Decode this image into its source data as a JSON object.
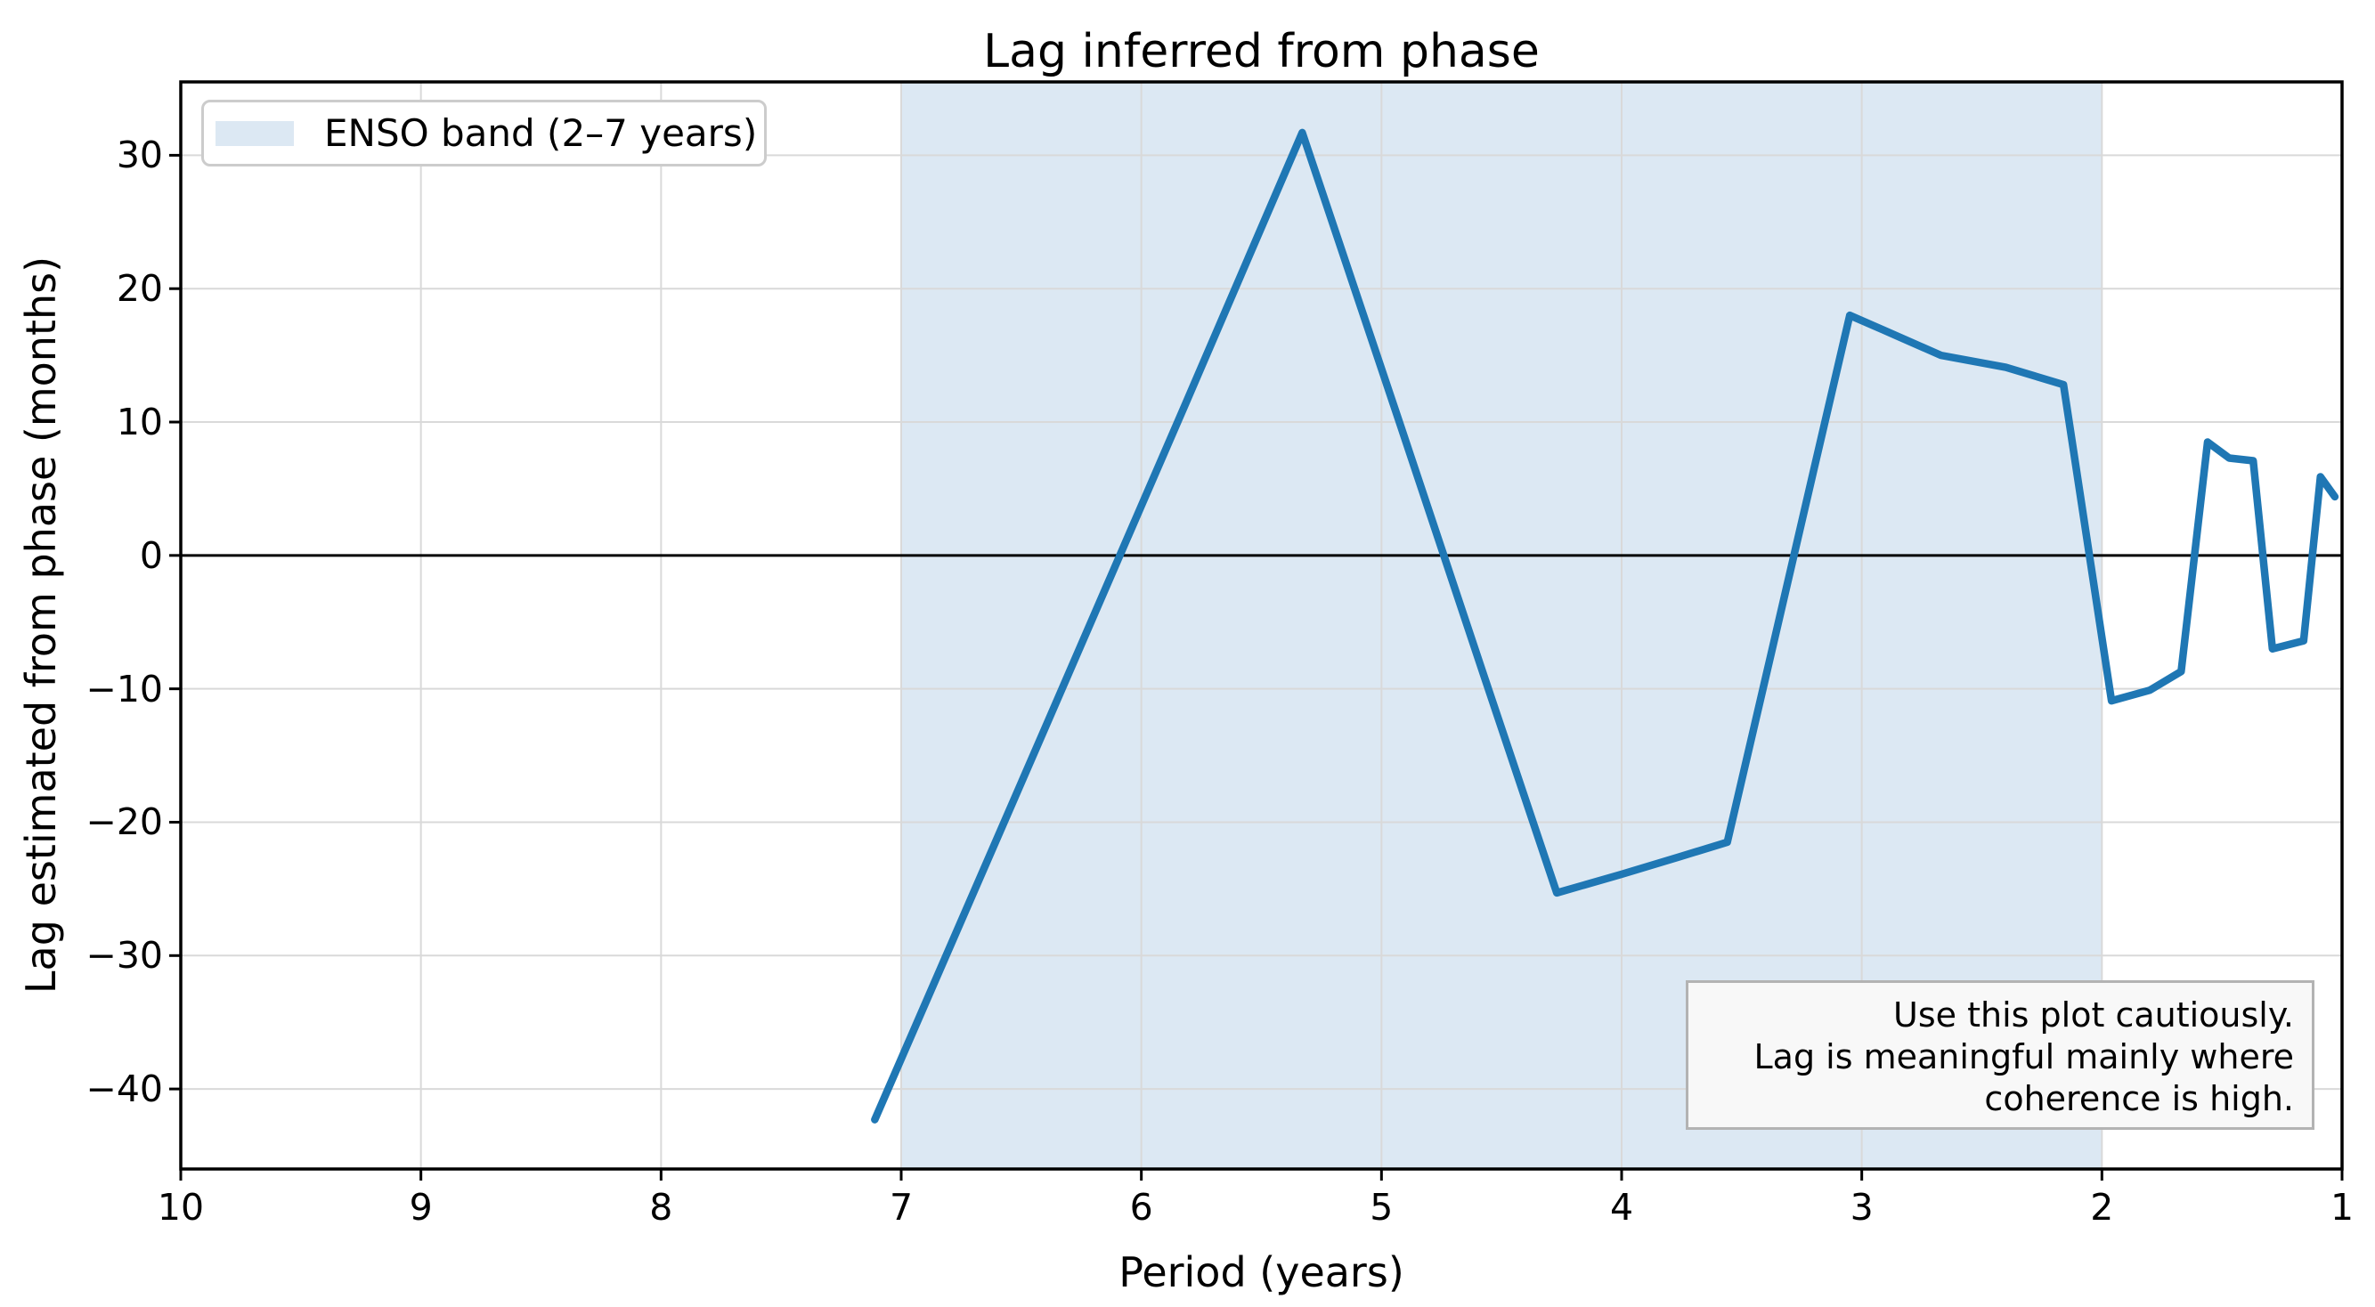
{
  "figure": {
    "title": "Lag inferred from phase",
    "xlabel": "Period (years)",
    "ylabel": "Lag estimated from phase (months)"
  },
  "legend": {
    "items": [
      {
        "label": "ENSO band (2–7 years)",
        "swatch_color": "#dce8f3"
      }
    ]
  },
  "annotation": {
    "lines": [
      "Use this plot cautiously.",
      "Lag is meaningful mainly where",
      "coherence is high."
    ]
  },
  "colors": {
    "line": "#1f77b4",
    "band": "#dce8f3",
    "grid": "#d9d9d9",
    "zero_line": "#000000",
    "axes": "#000000",
    "legend_border": "#cccccc",
    "annotation_bg": "#f8f8f8",
    "annotation_border": "#b3b3b3"
  },
  "chart_data": {
    "type": "line",
    "title": "Lag inferred from phase",
    "xlabel": "Period (years)",
    "ylabel": "Lag estimated from phase (months)",
    "x_axis": {
      "lim": [
        10,
        1
      ],
      "ticks": [
        10,
        9,
        8,
        7,
        6,
        5,
        4,
        3,
        2,
        1
      ],
      "reversed": true
    },
    "y_axis": {
      "lim": [
        -46,
        35.5
      ],
      "ticks": [
        -40,
        -30,
        -20,
        -10,
        0,
        10,
        20,
        30
      ]
    },
    "grid": true,
    "zero_line": 0,
    "band": {
      "label": "ENSO band (2–7 years)",
      "from_period": 7,
      "to_period": 2
    },
    "legend_position": "upper left",
    "series": [
      {
        "name": "Lag estimated from phase",
        "x": [
          7.11,
          6.4,
          5.82,
          5.33,
          4.92,
          4.57,
          4.27,
          4.0,
          3.76,
          3.56,
          3.37,
          3.2,
          3.05,
          2.91,
          2.67,
          2.4,
          2.16,
          1.96,
          1.8,
          1.67,
          1.56,
          1.47,
          1.37,
          1.29,
          1.16,
          1.09,
          1.03
        ],
        "y": [
          -42.3,
          -12.9,
          11.2,
          31.7,
          9.7,
          -9.2,
          -25.3,
          -23.9,
          -22.6,
          -21.5,
          -6.8,
          6.4,
          18.0,
          16.9,
          15.0,
          14.1,
          12.8,
          -10.9,
          -10.1,
          -8.7,
          8.5,
          7.3,
          7.1,
          -7.0,
          -6.4,
          5.9,
          4.4
        ]
      }
    ]
  }
}
